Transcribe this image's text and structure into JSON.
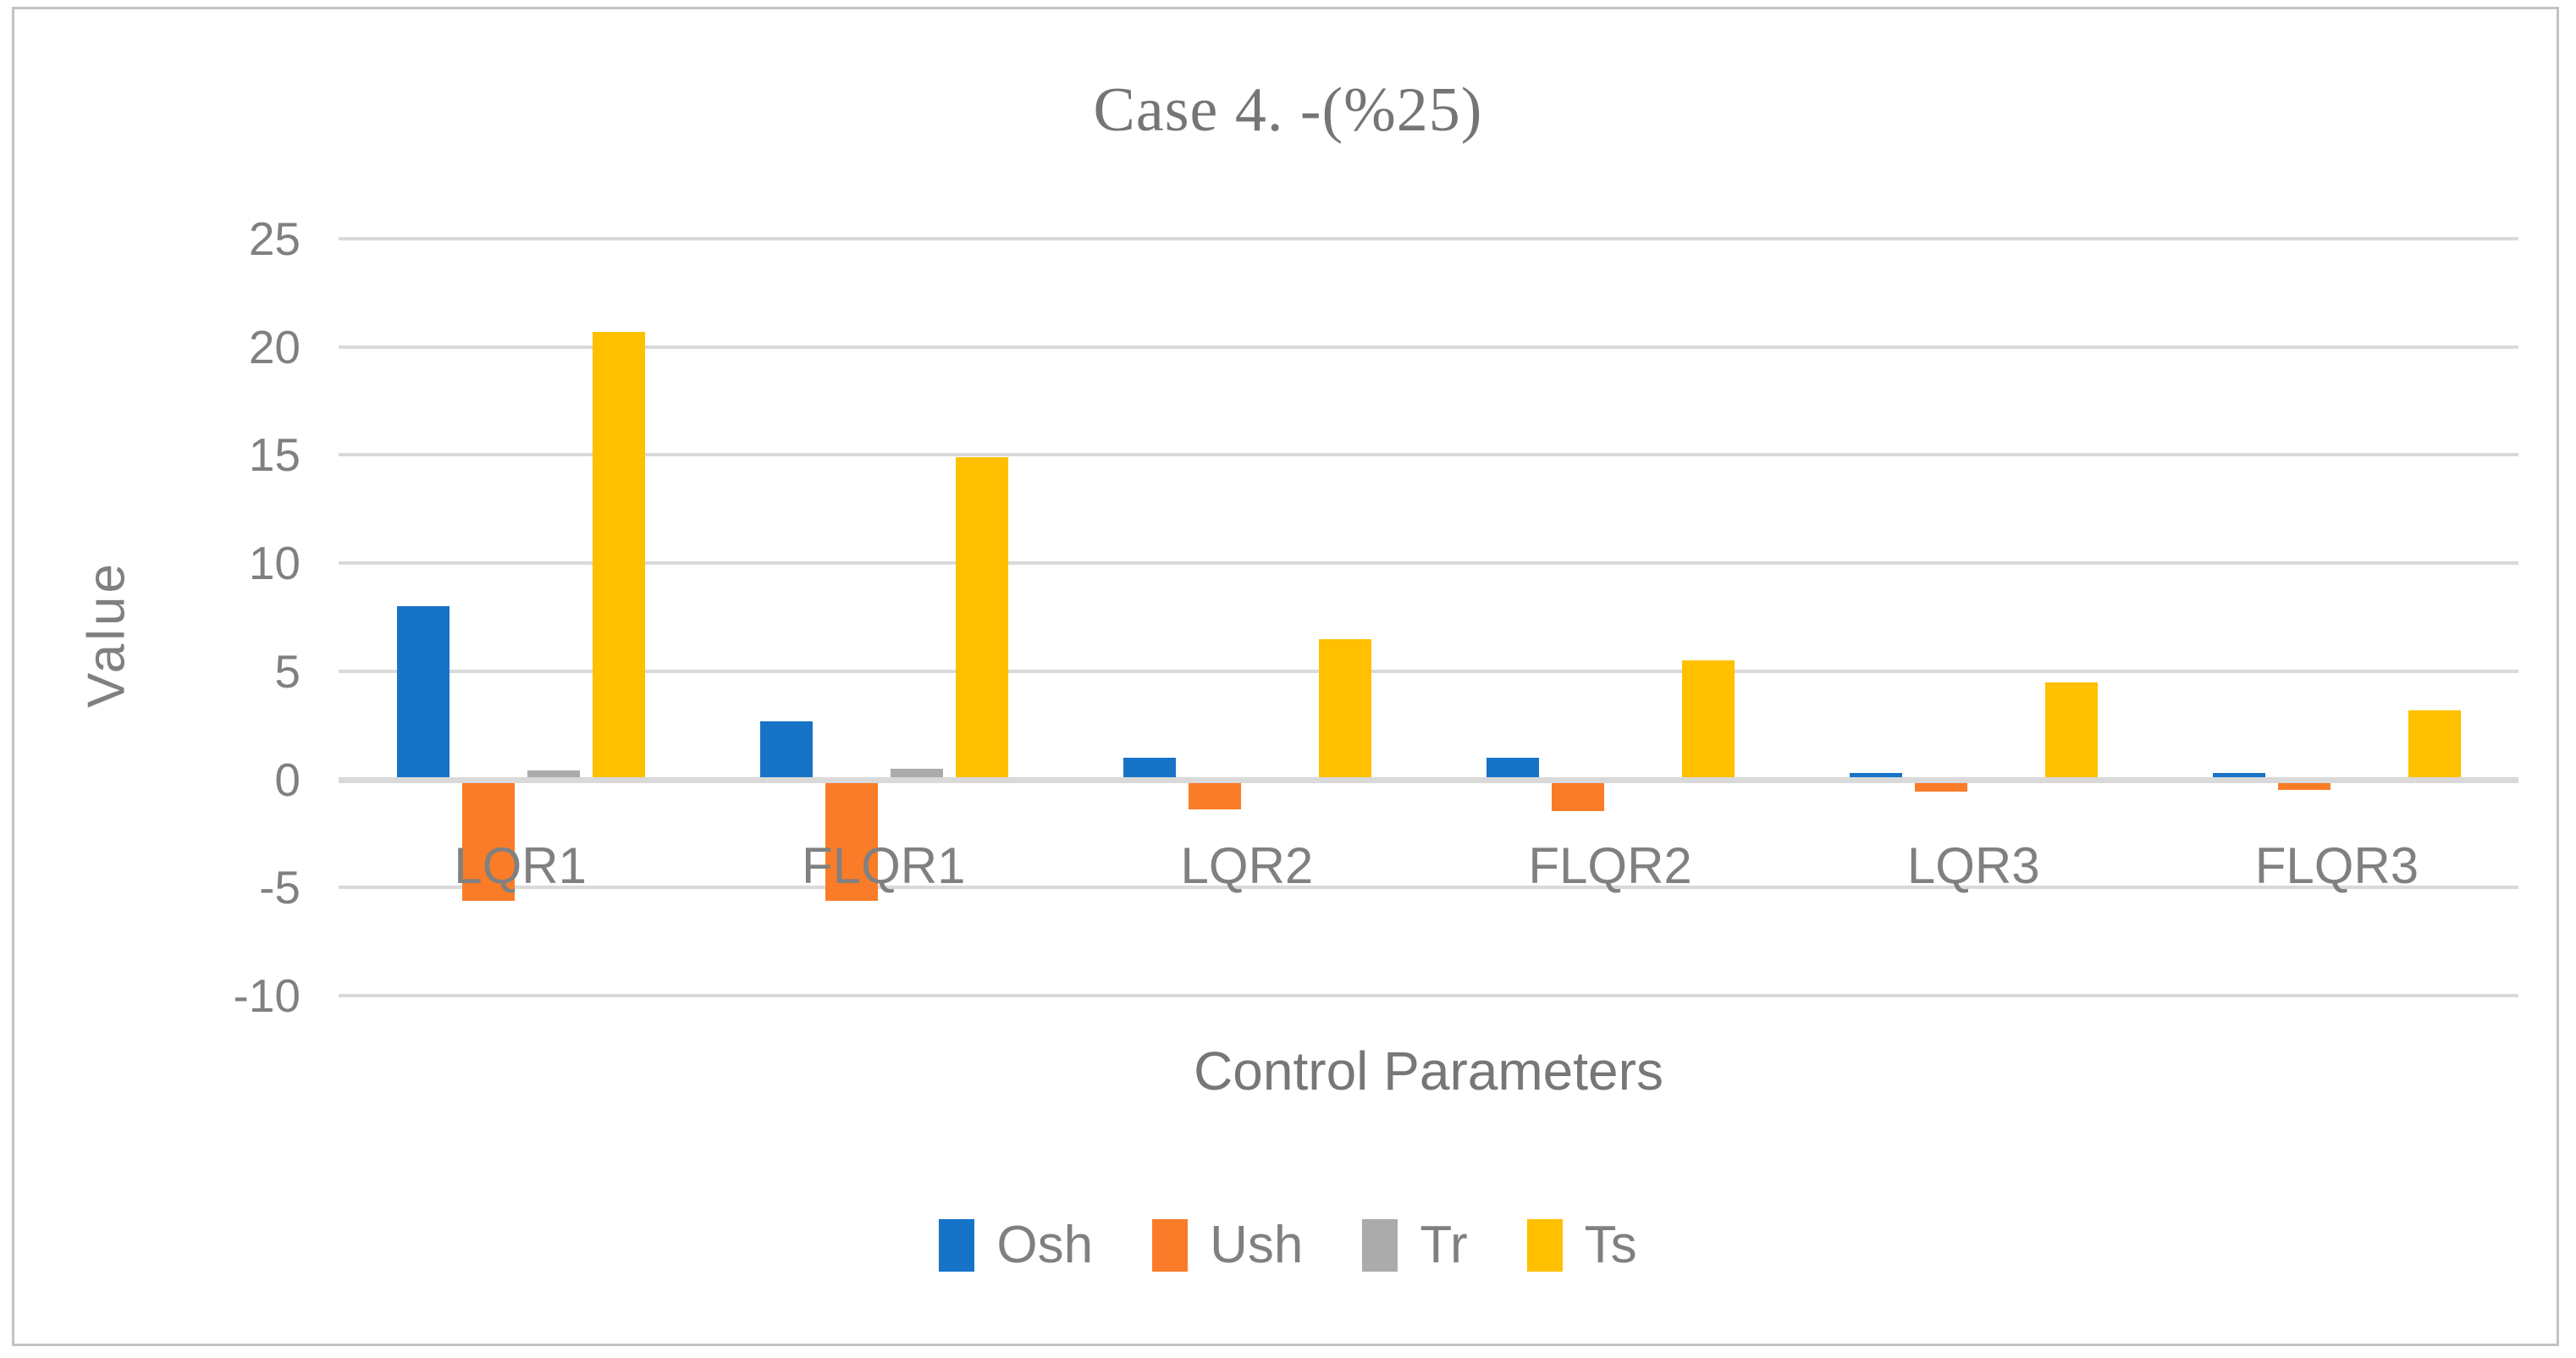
{
  "title": "Case 4. -(%25)",
  "y_axis": {
    "title": "Value"
  },
  "x_axis": {
    "title": "Control Parameters"
  },
  "legend": {
    "items": [
      {
        "label": "Osh",
        "color": "#1773C8"
      },
      {
        "label": "Ush",
        "color": "#FA7C28"
      },
      {
        "label": "Tr",
        "color": "#ABABAB"
      },
      {
        "label": "Ts",
        "color": "#FFC000"
      }
    ]
  },
  "colors": {
    "gridline": "#D9D9D9",
    "axis_line": "#D9D9D9",
    "text": "#808080",
    "title_text": "#757575",
    "frame_border": "#C3C3C3"
  },
  "chart_data": {
    "type": "bar",
    "title": "Case 4. -(%25)",
    "xlabel": "Control Parameters",
    "ylabel": "Value",
    "ylim": [
      -10,
      25
    ],
    "yticks": [
      25,
      20,
      15,
      10,
      5,
      0,
      -5,
      -10
    ],
    "grid": true,
    "legend_position": "bottom",
    "categories": [
      "LQR1",
      "FLQR1",
      "LQR2",
      "FLQR2",
      "LQR3",
      "FLQR3"
    ],
    "series": [
      {
        "name": "Osh",
        "color": "#1773C8",
        "values": [
          8.0,
          2.7,
          1.0,
          1.0,
          0.3,
          0.3
        ]
      },
      {
        "name": "Ush",
        "color": "#FA7C28",
        "values": [
          -5.6,
          -5.6,
          -1.4,
          -1.45,
          -0.55,
          -0.5
        ]
      },
      {
        "name": "Tr",
        "color": "#ABABAB",
        "values": [
          0.4,
          0.5,
          0.05,
          0.05,
          0.02,
          0.02
        ]
      },
      {
        "name": "Ts",
        "color": "#FFC000",
        "values": [
          20.7,
          14.9,
          6.5,
          5.5,
          4.5,
          3.2
        ]
      }
    ]
  }
}
